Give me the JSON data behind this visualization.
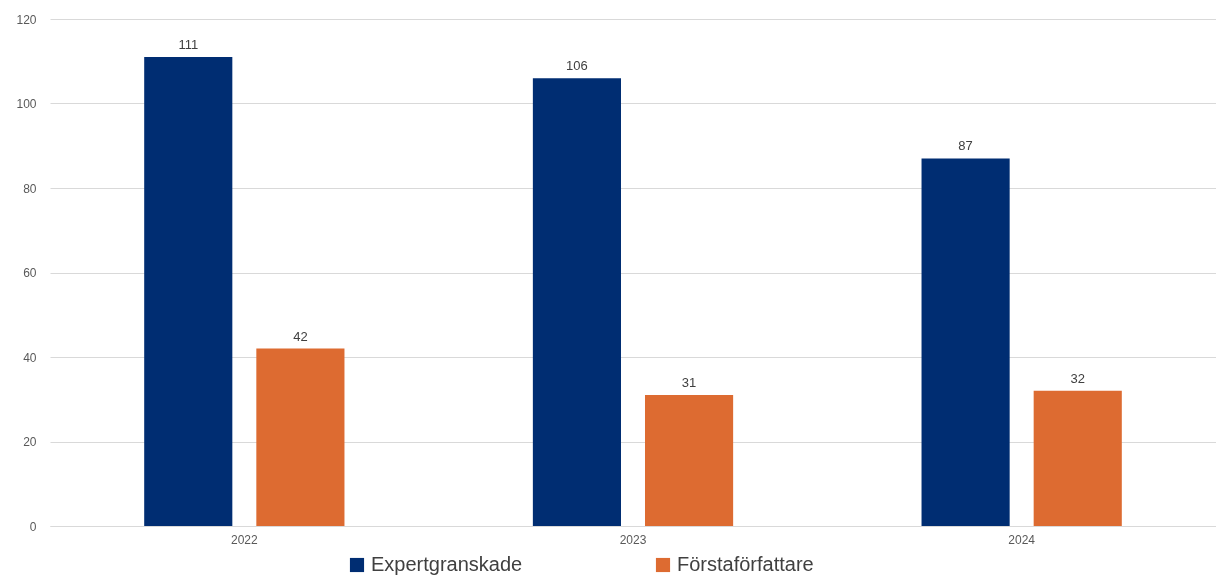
{
  "chart_data": {
    "type": "bar",
    "categories": [
      "2022",
      "2023",
      "2024"
    ],
    "series": [
      {
        "name": "Expertgranskade",
        "color": "#002d72",
        "values": [
          111,
          106,
          87
        ]
      },
      {
        "name": "Förstaförfattare",
        "color": "#dd6b31",
        "values": [
          42,
          31,
          32
        ]
      }
    ],
    "ylim": [
      0,
      120
    ],
    "yticks": [
      0,
      20,
      40,
      60,
      80,
      100,
      120
    ],
    "grid": "y",
    "legend": "bottom",
    "data_labels": true
  }
}
